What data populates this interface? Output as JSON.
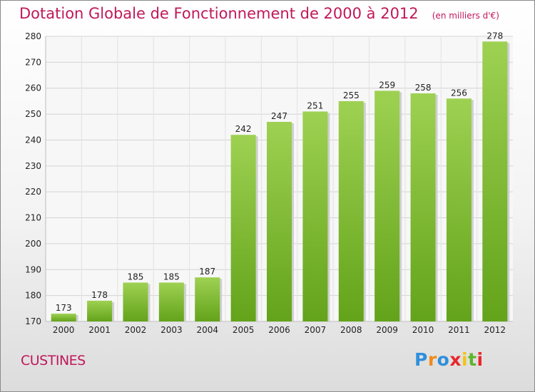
{
  "chart_data": {
    "type": "bar",
    "title": "Dotation Globale de Fonctionnement de 2000 à 2012",
    "subtitle": "(en milliers d'€)",
    "categories": [
      "2000",
      "2001",
      "2002",
      "2003",
      "2004",
      "2005",
      "2006",
      "2007",
      "2008",
      "2009",
      "2010",
      "2011",
      "2012"
    ],
    "values": [
      173,
      178,
      185,
      185,
      187,
      242,
      247,
      251,
      255,
      259,
      258,
      256,
      278
    ],
    "ylim": [
      170,
      280
    ],
    "yticks": [
      170,
      180,
      190,
      200,
      210,
      220,
      230,
      240,
      250,
      260,
      270,
      280
    ],
    "grid": true,
    "bar_color": "#7fc32e"
  },
  "footer": {
    "commune": "CUSTINES",
    "logo": [
      "P",
      "r",
      "o",
      "x",
      "i",
      "t",
      "i"
    ],
    "logo_colors": [
      "#2f8fdc",
      "#f28a1a",
      "#2f8fdc",
      "#e8262c",
      "#f4c316",
      "#5fb62c",
      "#e8262c"
    ]
  }
}
